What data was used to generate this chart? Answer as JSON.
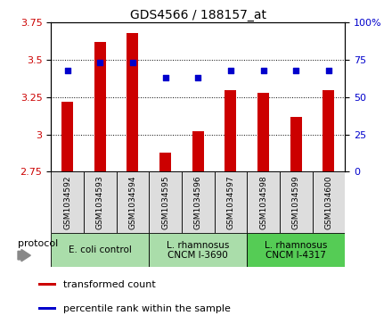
{
  "title": "GDS4566 / 188157_at",
  "samples": [
    "GSM1034592",
    "GSM1034593",
    "GSM1034594",
    "GSM1034595",
    "GSM1034596",
    "GSM1034597",
    "GSM1034598",
    "GSM1034599",
    "GSM1034600"
  ],
  "transformed_counts": [
    3.22,
    3.62,
    3.68,
    2.88,
    3.02,
    3.3,
    3.28,
    3.12,
    3.3
  ],
  "percentile_ranks": [
    68,
    73,
    73,
    63,
    63,
    68,
    68,
    68,
    68
  ],
  "ylim_left": [
    2.75,
    3.75
  ],
  "ylim_right": [
    0,
    100
  ],
  "yticks_left": [
    2.75,
    3.0,
    3.25,
    3.5,
    3.75
  ],
  "yticks_right": [
    0,
    25,
    50,
    75,
    100
  ],
  "bar_color": "#cc0000",
  "dot_color": "#0000cc",
  "bar_width": 0.35,
  "groups": [
    {
      "label": "E. coli control",
      "start": 0,
      "end": 3,
      "color": "#aaddaa"
    },
    {
      "label": "L. rhamnosus\nCNCM I-3690",
      "start": 3,
      "end": 6,
      "color": "#aaddaa"
    },
    {
      "label": "L. rhamnosus\nCNCM I-4317",
      "start": 6,
      "end": 9,
      "color": "#55cc55"
    }
  ],
  "sample_box_color": "#dddddd",
  "protocol_label": "protocol",
  "legend_items": [
    {
      "color": "#cc0000",
      "label": "transformed count"
    },
    {
      "color": "#0000cc",
      "label": "percentile rank within the sample"
    }
  ]
}
